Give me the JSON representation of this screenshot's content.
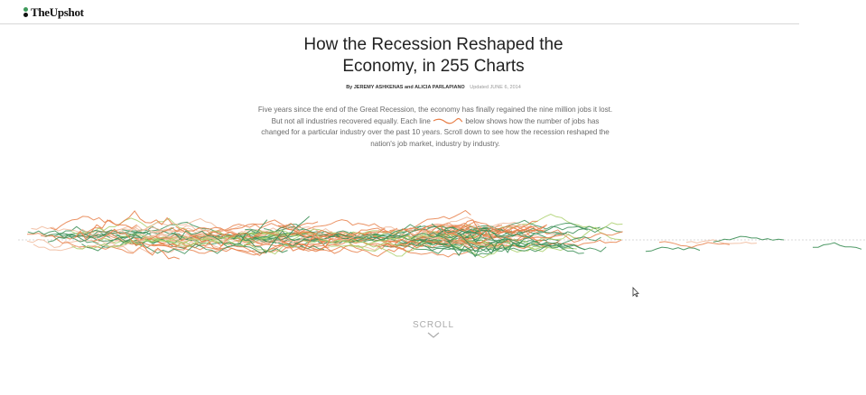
{
  "brand": {
    "logo_text": "TheUpshot"
  },
  "article": {
    "headline_line1": "How the Recession Reshaped the",
    "headline_line2": "Economy, in 255 Charts",
    "byline_authors": "By JEREMY ASHKENAS and ALICIA PARLAPIANO",
    "byline_updated": "Updated JUNE 6, 2014",
    "intro_part1": "Five years since the end of the Great Recession, the economy has finally regained the nine million jobs it lost. But not all industries recovered equally. Each line",
    "intro_part2": "below shows how the number of jobs has changed for a particular industry over the past 10 years. Scroll down to see how the recession reshaped the nation's job market, industry by industry."
  },
  "scroll": {
    "label": "SCROLL"
  },
  "colors": {
    "growth": "#3c8f57",
    "growth_light": "#a9cf6a",
    "decline": "#e8804a",
    "decline_light": "#f0b89a",
    "baseline": "#cccccc"
  },
  "chart_data": {
    "type": "line",
    "series_count_stated": 255,
    "baseline": 0,
    "grid": false,
    "legend": "none"
  }
}
